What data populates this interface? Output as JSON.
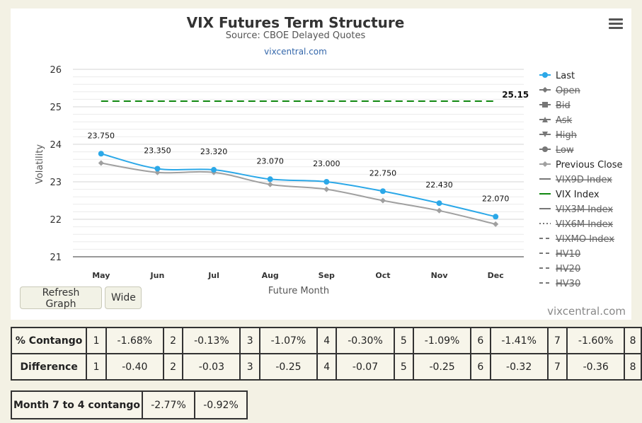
{
  "chart": {
    "menu_icon": "hamburger-menu-icon",
    "refresh_label": "Refresh Graph",
    "wide_label": "Wide",
    "credits": "vixcentral.com"
  },
  "chart_data": {
    "type": "line",
    "title": "VIX Futures Term Structure",
    "subtitle": "Source: CBOE Delayed Quotes",
    "link": "vixcentral.com",
    "xlabel": "Future Month",
    "ylabel": "Volatility",
    "categories": [
      "May",
      "Jun",
      "Jul",
      "Aug",
      "Sep",
      "Oct",
      "Nov",
      "Dec"
    ],
    "ylim": [
      21,
      26
    ],
    "yticks": [
      "21",
      "22",
      "23",
      "24",
      "25",
      "26"
    ],
    "grid": true,
    "legend_position": "right",
    "series": [
      {
        "name": "Last",
        "color": "#2ba8e8",
        "values": [
          23.75,
          23.35,
          23.32,
          23.07,
          23.0,
          22.75,
          22.43,
          22.07
        ],
        "labels": [
          "23.750",
          "23.350",
          "23.320",
          "23.070",
          "23.000",
          "22.750",
          "22.430",
          "22.070"
        ]
      },
      {
        "name": "Previous Close",
        "color": "#a0a0a0",
        "values": [
          23.5,
          23.25,
          23.25,
          22.93,
          22.8,
          22.5,
          22.23,
          21.87
        ]
      },
      {
        "name": "VIX Index",
        "color": "#118811",
        "values": [
          25.15,
          25.15,
          25.15,
          25.15,
          25.15,
          25.15,
          25.15,
          25.15
        ],
        "end_label": "25.15"
      }
    ],
    "legend": [
      {
        "name": "Last",
        "symbol": "dot",
        "hidden": false,
        "color": "#2ba8e8"
      },
      {
        "name": "Open",
        "symbol": "diamond",
        "hidden": true,
        "color": "#666666"
      },
      {
        "name": "Bid",
        "symbol": "square",
        "hidden": true,
        "color": "#666666"
      },
      {
        "name": "Ask",
        "symbol": "triangle",
        "hidden": true,
        "color": "#666666"
      },
      {
        "name": "High",
        "symbol": "triangle-down",
        "hidden": true,
        "color": "#666666"
      },
      {
        "name": "Low",
        "symbol": "dot",
        "hidden": true,
        "color": "#666666"
      },
      {
        "name": "Previous Close",
        "symbol": "diamond",
        "hidden": false,
        "color": "#a0a0a0"
      },
      {
        "name": "VIX9D Index",
        "symbol": "solid",
        "hidden": true,
        "color": "#666666"
      },
      {
        "name": "VIX Index",
        "symbol": "solid",
        "hidden": false,
        "color": "#118811"
      },
      {
        "name": "VIX3M Index",
        "symbol": "solid",
        "hidden": true,
        "color": "#666666"
      },
      {
        "name": "VIX6M Index",
        "symbol": "dotted",
        "hidden": true,
        "color": "#666666"
      },
      {
        "name": "VIXMO Index",
        "symbol": "dashed",
        "hidden": true,
        "color": "#666666"
      },
      {
        "name": "HV10",
        "symbol": "dashed",
        "hidden": true,
        "color": "#666666"
      },
      {
        "name": "HV20",
        "symbol": "dashed",
        "hidden": true,
        "color": "#666666"
      },
      {
        "name": "HV30",
        "symbol": "dashed",
        "hidden": true,
        "color": "#666666"
      }
    ]
  },
  "contango_table": {
    "rows": [
      {
        "label": "% Contango",
        "cells": [
          "1",
          "-1.68%",
          "2",
          "-0.13%",
          "3",
          "-1.07%",
          "4",
          "-0.30%",
          "5",
          "-1.09%",
          "6",
          "-1.41%",
          "7",
          "-1.60%",
          "8"
        ]
      },
      {
        "label": "Difference",
        "cells": [
          "1",
          "-0.40",
          "2",
          "-0.03",
          "3",
          "-0.25",
          "4",
          "-0.07",
          "5",
          "-0.25",
          "6",
          "-0.32",
          "7",
          "-0.36",
          "8"
        ]
      }
    ]
  },
  "month7to4": {
    "label": "Month 7 to 4 contango",
    "values": [
      "-2.77%",
      "-0.92%"
    ]
  }
}
